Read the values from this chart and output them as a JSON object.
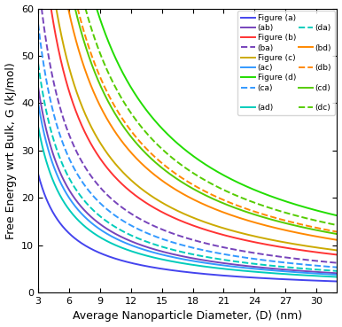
{
  "xlabel": "Average Nanoparticle Diameter, ⟨D⟩ (nm)",
  "ylabel": "Free Energy wrt Bulk, G (kJ/mol)",
  "xlim": [
    3,
    32
  ],
  "ylim": [
    0,
    60
  ],
  "xticks": [
    3,
    6,
    9,
    12,
    15,
    18,
    21,
    24,
    27,
    30
  ],
  "yticks": [
    0,
    10,
    20,
    30,
    40,
    50,
    60
  ],
  "curves": [
    {
      "label": "Figure (a)",
      "color": "#4444ee",
      "linestyle": "-",
      "k": 7.5,
      "lw": 1.4
    },
    {
      "label": "Figure (b)",
      "color": "#ff3333",
      "linestyle": "-",
      "k": 25.5,
      "lw": 1.4
    },
    {
      "label": "Figure (c)",
      "color": "#ccaa00",
      "linestyle": "-",
      "k": 28.5,
      "lw": 1.4
    },
    {
      "label": "Figure (d)",
      "color": "#22dd00",
      "linestyle": "-",
      "k": 52.0,
      "lw": 1.4
    },
    {
      "label": "(ab)",
      "color": "#7744bb",
      "linestyle": "-",
      "k": 13.0,
      "lw": 1.4
    },
    {
      "label": "(ba)",
      "color": "#7744bb",
      "linestyle": "--",
      "k": 20.0,
      "lw": 1.4
    },
    {
      "label": "(ac)",
      "color": "#3399ff",
      "linestyle": "-",
      "k": 12.0,
      "lw": 1.4
    },
    {
      "label": "(ca)",
      "color": "#3399ff",
      "linestyle": "--",
      "k": 17.0,
      "lw": 1.4
    },
    {
      "label": "(ad)",
      "color": "#00ccbb",
      "linestyle": "-",
      "k": 10.5,
      "lw": 1.4
    },
    {
      "label": "(da)",
      "color": "#00ccbb",
      "linestyle": "--",
      "k": 14.5,
      "lw": 1.4
    },
    {
      "label": "(bd)",
      "color": "#ff8800",
      "linestyle": "-",
      "k": 35.5,
      "lw": 1.4
    },
    {
      "label": "(db)",
      "color": "#ff8800",
      "linestyle": "--",
      "k": 41.0,
      "lw": 1.4
    },
    {
      "label": "(cd)",
      "color": "#55cc00",
      "linestyle": "-",
      "k": 39.5,
      "lw": 1.4
    },
    {
      "label": "(dc)",
      "color": "#55cc00",
      "linestyle": "--",
      "k": 45.5,
      "lw": 1.4
    }
  ],
  "legend_left": [
    {
      "label": "Figure (a)",
      "color": "#4444ee",
      "linestyle": "-"
    },
    {
      "label": "Figure (b)",
      "color": "#ff3333",
      "linestyle": "-"
    },
    {
      "label": "Figure (c)",
      "color": "#ccaa00",
      "linestyle": "-"
    },
    {
      "label": "Figure (d)",
      "color": "#22dd00",
      "linestyle": "-"
    }
  ],
  "legend_right": [
    {
      "label": "(ab)",
      "color": "#7744bb",
      "linestyle": "-"
    },
    {
      "label": "(ba)",
      "color": "#7744bb",
      "linestyle": "--"
    },
    {
      "label": "(ac)",
      "color": "#3399ff",
      "linestyle": "-"
    },
    {
      "label": "(ca)",
      "color": "#3399ff",
      "linestyle": "--"
    },
    {
      "label": "(ad)",
      "color": "#00ccbb",
      "linestyle": "-"
    },
    {
      "label": "(da)",
      "color": "#00ccbb",
      "linestyle": "--"
    },
    {
      "label": "(bd)",
      "color": "#ff8800",
      "linestyle": "-"
    },
    {
      "label": "(db)",
      "color": "#ff8800",
      "linestyle": "--"
    },
    {
      "label": "(cd)",
      "color": "#55cc00",
      "linestyle": "-"
    },
    {
      "label": "(dc)",
      "color": "#55cc00",
      "linestyle": "--"
    }
  ]
}
